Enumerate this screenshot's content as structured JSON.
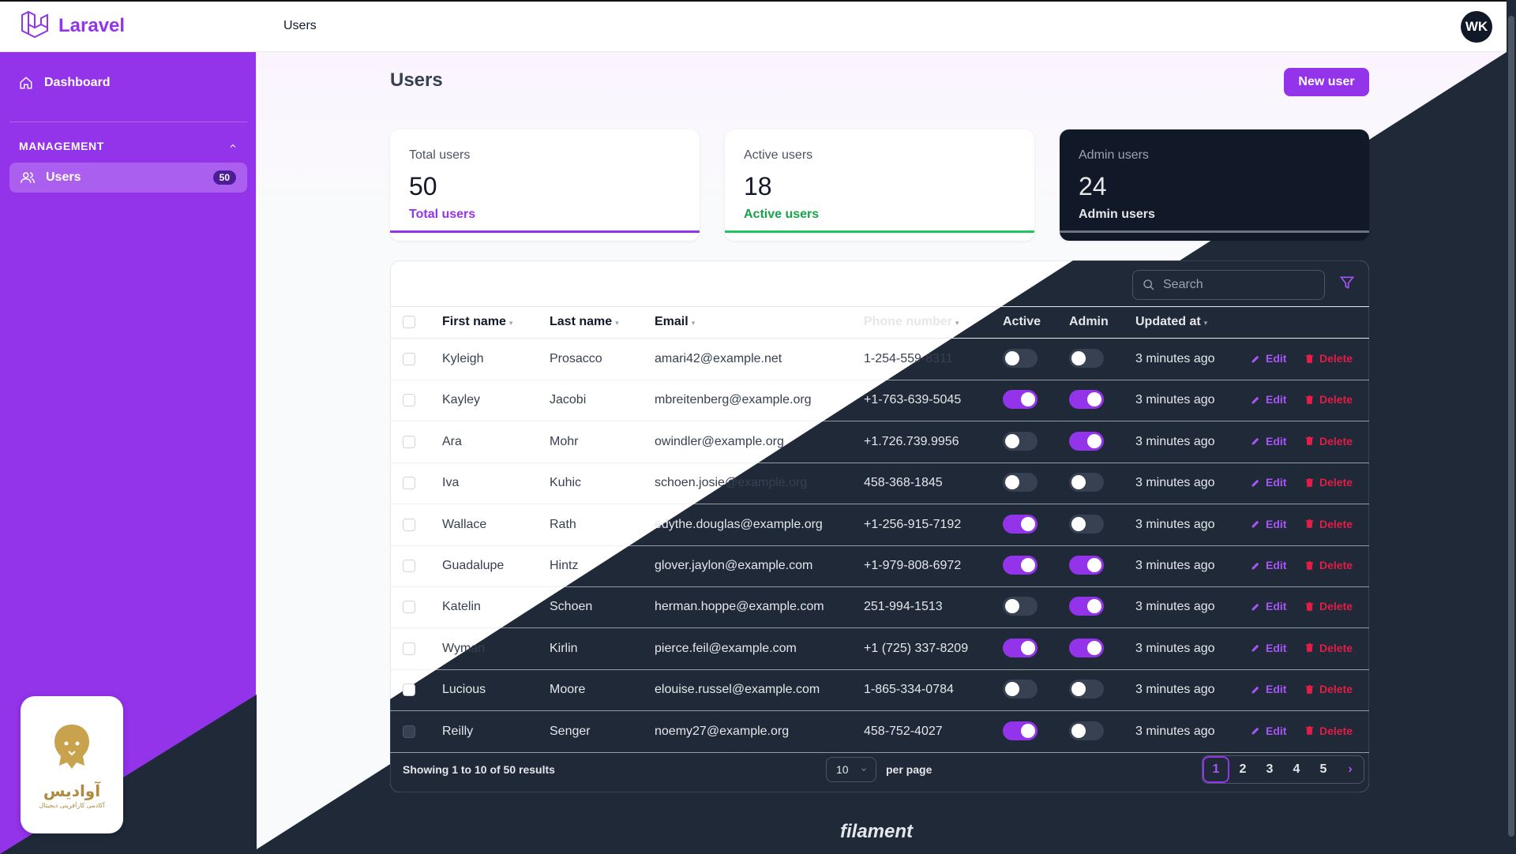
{
  "brand": {
    "name": "Laravel"
  },
  "topbar": {
    "title": "Users",
    "avatar_initials": "WK"
  },
  "sidebar": {
    "dashboard_label": "Dashboard",
    "group_label": "MANAGEMENT",
    "users_label": "Users",
    "users_badge": "50"
  },
  "company": {
    "name": "آوادیس",
    "tagline": "آکادمی کارآفرینی دیجیتال"
  },
  "page": {
    "title": "Users",
    "new_button": "New user"
  },
  "stats": [
    {
      "label": "Total users",
      "value": "50",
      "desc": "Total users",
      "color": "#9333ea"
    },
    {
      "label": "Active users",
      "value": "18",
      "desc": "Active users",
      "color": "#16a34a"
    },
    {
      "label": "Admin users",
      "value": "24",
      "desc": "Admin users",
      "color": "#e5e7eb"
    }
  ],
  "table": {
    "search_placeholder": "Search",
    "headers": {
      "first_name": "First name",
      "last_name": "Last name",
      "email": "Email",
      "phone": "Phone number",
      "active": "Active",
      "admin": "Admin",
      "updated": "Updated at"
    },
    "edit_label": "Edit",
    "delete_label": "Delete",
    "rows": [
      {
        "first": "Kyleigh",
        "last": "Prosacco",
        "email": "amari42@example.net",
        "phone": "1-254-559-8311",
        "active": false,
        "admin": false,
        "updated": "3 minutes ago"
      },
      {
        "first": "Kayley",
        "last": "Jacobi",
        "email": "mbreitenberg@example.org",
        "phone": "+1-763-639-5045",
        "active": true,
        "admin": true,
        "updated": "3 minutes ago"
      },
      {
        "first": "Ara",
        "last": "Mohr",
        "email": "owindler@example.org",
        "phone": "+1.726.739.9956",
        "active": false,
        "admin": true,
        "updated": "3 minutes ago"
      },
      {
        "first": "Iva",
        "last": "Kuhic",
        "email": "schoen.josie@example.org",
        "phone": "458-368-1845",
        "active": false,
        "admin": false,
        "updated": "3 minutes ago"
      },
      {
        "first": "Wallace",
        "last": "Rath",
        "email": "edythe.douglas@example.org",
        "phone": "+1-256-915-7192",
        "active": true,
        "admin": false,
        "updated": "3 minutes ago"
      },
      {
        "first": "Guadalupe",
        "last": "Hintz",
        "email": "glover.jaylon@example.com",
        "phone": "+1-979-808-6972",
        "active": true,
        "admin": true,
        "updated": "3 minutes ago"
      },
      {
        "first": "Katelin",
        "last": "Schoen",
        "email": "herman.hoppe@example.com",
        "phone": "251-994-1513",
        "active": false,
        "admin": true,
        "updated": "3 minutes ago"
      },
      {
        "first": "Wyman",
        "last": "Kirlin",
        "email": "pierce.feil@example.com",
        "phone": "+1 (725) 337-8209",
        "active": true,
        "admin": true,
        "updated": "3 minutes ago"
      },
      {
        "first": "Lucious",
        "last": "Moore",
        "email": "elouise.russel@example.com",
        "phone": "1-865-334-0784",
        "active": false,
        "admin": false,
        "updated": "3 minutes ago"
      },
      {
        "first": "Reilly",
        "last": "Senger",
        "email": "noemy27@example.org",
        "phone": "458-752-4027",
        "active": true,
        "admin": false,
        "updated": "3 minutes ago"
      }
    ],
    "footer": {
      "showing": "Showing 1 to 10 of 50 results",
      "per_page_value": "10",
      "per_page_label": "per page",
      "pages": [
        "1",
        "2",
        "3",
        "4",
        "5"
      ],
      "current_page": "1"
    }
  },
  "footer_brand": "filament"
}
